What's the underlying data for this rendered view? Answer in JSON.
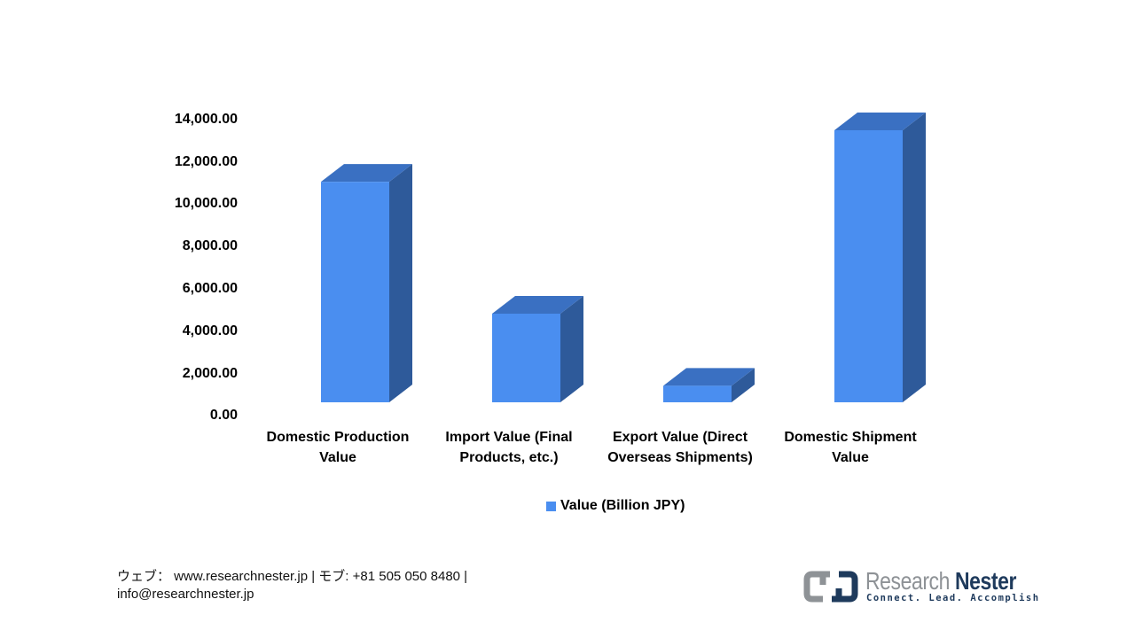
{
  "chart_data": {
    "type": "bar",
    "style": "3d-column",
    "title": "",
    "xlabel": "",
    "ylabel": "",
    "categories": [
      "Domestic Production Value",
      "Import Value (Final Products, etc.)",
      "Export Value (Direct Overseas Shipments)",
      "Domestic Shipment Value"
    ],
    "series": [
      {
        "name": "Value (Billion JPY)",
        "values": [
          10700,
          4300,
          800,
          13200
        ],
        "color": "#4a8ef0"
      }
    ],
    "ylim": [
      0,
      14000
    ],
    "yticks": [
      "0.00",
      "2,000.00",
      "4,000.00",
      "6,000.00",
      "8,000.00",
      "10,000.00",
      "12,000.00",
      "14,000.00"
    ],
    "grid": false,
    "legend_position": "bottom"
  },
  "axis": {
    "yticks": [
      "14,000.00",
      "12,000.00",
      "10,000.00",
      "8,000.00",
      "6,000.00",
      "4,000.00",
      "2,000.00",
      "0.00"
    ]
  },
  "xlabels": [
    {
      "line1": "Domestic Production",
      "line2": "Value"
    },
    {
      "line1": "Import Value (Final",
      "line2": "Products, etc.)"
    },
    {
      "line1": "Export Value (Direct",
      "line2": "Overseas Shipments)"
    },
    {
      "line1": "Domestic Shipment",
      "line2": "Value"
    }
  ],
  "legend": {
    "label": "Value (Billion JPY)"
  },
  "colors": {
    "bar_front": "#4a8ef0",
    "bar_top": "#3a70c2",
    "bar_side": "#2e5a9a",
    "brand_gray": "#8e9296",
    "brand_navy": "#1e3a5c"
  },
  "footer": {
    "line1": "ウェブ：  www.researchnester.jp   | モブ: +81 505 050 8480 |",
    "line2": "info@researchnester.jp"
  },
  "logo": {
    "word1": "Research",
    "word2": "Nester",
    "tagline": "Connect. Lead. Accomplish"
  }
}
